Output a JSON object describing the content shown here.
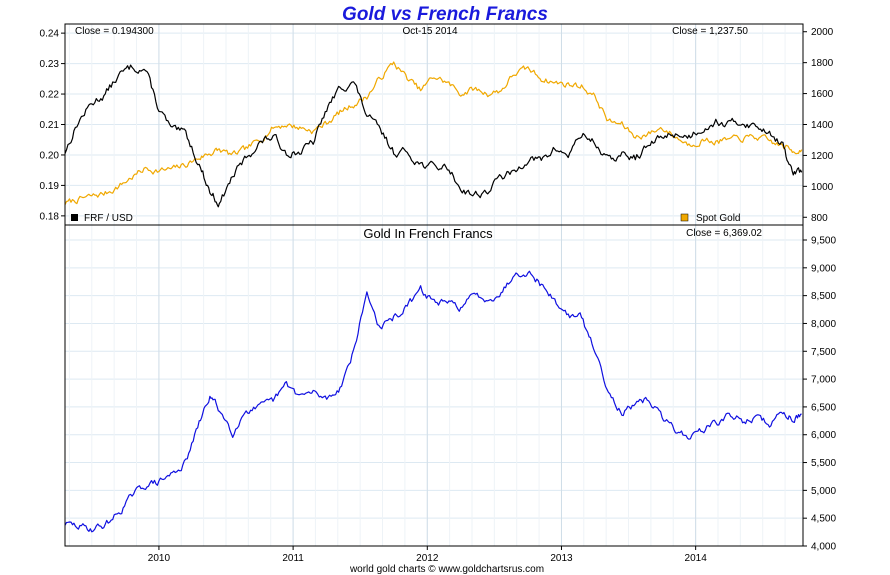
{
  "chart_data": {
    "title": "Gold vs French Francs",
    "title_color": "#1a1adc",
    "footer": "world gold charts © www.goldchartsrus.com",
    "x_ticks": [
      "2010",
      "2011",
      "2012",
      "2013",
      "2014"
    ],
    "top": {
      "type": "line",
      "date_label": "Oct-15  2014",
      "left_close": "Close = 0.194300",
      "right_close": "Close = 1,237.50",
      "left_axis": {
        "ticks": [
          "0.24",
          "0.23",
          "0.22",
          "0.21",
          "0.20",
          "0.19",
          "0.18"
        ],
        "ylim": [
          0.177,
          0.243
        ]
      },
      "right_axis": {
        "ticks": [
          "2000",
          "1800",
          "1600",
          "1400",
          "1200",
          "1000",
          "800"
        ],
        "ylim": [
          750,
          2050
        ]
      },
      "grid": true,
      "legend": [
        "bottom-left",
        "bottom-right"
      ],
      "series": [
        {
          "name": "FRF / USD",
          "axis": "left",
          "color": "#000000",
          "x": [
            2009.3,
            2009.4,
            2009.5,
            2009.6,
            2009.7,
            2009.8,
            2009.9,
            2010.0,
            2010.1,
            2010.2,
            2010.3,
            2010.38,
            2010.45,
            2010.55,
            2010.65,
            2010.75,
            2010.85,
            2010.95,
            2011.05,
            2011.15,
            2011.25,
            2011.35,
            2011.45,
            2011.55,
            2011.65,
            2011.75,
            2011.85,
            2011.95,
            2012.05,
            2012.15,
            2012.25,
            2012.35,
            2012.45,
            2012.55,
            2012.65,
            2012.75,
            2012.85,
            2012.95,
            2013.05,
            2013.15,
            2013.25,
            2013.35,
            2013.45,
            2013.55,
            2013.65,
            2013.75,
            2013.85,
            2013.95,
            2014.05,
            2014.15,
            2014.25,
            2014.35,
            2014.45,
            2014.55,
            2014.65,
            2014.72,
            2014.79
          ],
          "y": [
            0.201,
            0.211,
            0.217,
            0.22,
            0.226,
            0.229,
            0.228,
            0.215,
            0.208,
            0.207,
            0.197,
            0.188,
            0.184,
            0.193,
            0.199,
            0.204,
            0.206,
            0.201,
            0.201,
            0.204,
            0.215,
            0.222,
            0.224,
            0.213,
            0.208,
            0.201,
            0.201,
            0.197,
            0.196,
            0.196,
            0.189,
            0.187,
            0.188,
            0.193,
            0.194,
            0.199,
            0.198,
            0.202,
            0.2,
            0.207,
            0.204,
            0.198,
            0.2,
            0.199,
            0.203,
            0.206,
            0.207,
            0.206,
            0.209,
            0.211,
            0.21,
            0.211,
            0.209,
            0.208,
            0.203,
            0.194,
            0.1943
          ]
        },
        {
          "name": "Spot Gold",
          "axis": "right",
          "color": "#f0a800",
          "x": [
            2009.3,
            2009.4,
            2009.5,
            2009.6,
            2009.7,
            2009.8,
            2009.9,
            2010.0,
            2010.1,
            2010.2,
            2010.3,
            2010.38,
            2010.45,
            2010.55,
            2010.65,
            2010.75,
            2010.85,
            2010.95,
            2011.05,
            2011.15,
            2011.25,
            2011.35,
            2011.45,
            2011.55,
            2011.65,
            2011.75,
            2011.85,
            2011.95,
            2012.05,
            2012.15,
            2012.25,
            2012.35,
            2012.45,
            2012.55,
            2012.65,
            2012.75,
            2012.85,
            2012.95,
            2013.05,
            2013.15,
            2013.25,
            2013.35,
            2013.45,
            2013.55,
            2013.65,
            2013.75,
            2013.85,
            2013.95,
            2014.05,
            2014.15,
            2014.25,
            2014.35,
            2014.45,
            2014.55,
            2014.65,
            2014.72,
            2014.79
          ],
          "y": [
            890,
            915,
            935,
            955,
            1000,
            1060,
            1115,
            1100,
            1110,
            1140,
            1185,
            1215,
            1235,
            1200,
            1240,
            1300,
            1380,
            1400,
            1380,
            1360,
            1410,
            1480,
            1530,
            1580,
            1700,
            1800,
            1700,
            1620,
            1710,
            1670,
            1600,
            1630,
            1600,
            1620,
            1730,
            1760,
            1700,
            1670,
            1660,
            1650,
            1580,
            1420,
            1400,
            1320,
            1340,
            1380,
            1320,
            1270,
            1300,
            1290,
            1300,
            1310,
            1320,
            1290,
            1260,
            1230,
            1237.5
          ]
        }
      ]
    },
    "bottom": {
      "type": "line",
      "subtitle": "Gold In French Francs",
      "right_close": "Close = 6,369.02",
      "right_axis": {
        "ticks": [
          "9,500",
          "9,000",
          "8,500",
          "8,000",
          "7,500",
          "7,000",
          "6,500",
          "6,000",
          "5,500",
          "5,000",
          "4,500",
          "4,000"
        ],
        "ylim": [
          4000,
          9500
        ]
      },
      "grid": true,
      "series": [
        {
          "name": "Gold In French Francs",
          "color": "#1010e0",
          "x": [
            2009.3,
            2009.4,
            2009.5,
            2009.6,
            2009.7,
            2009.8,
            2009.9,
            2010.0,
            2010.1,
            2010.2,
            2010.3,
            2010.38,
            2010.45,
            2010.55,
            2010.65,
            2010.75,
            2010.85,
            2010.95,
            2011.05,
            2011.15,
            2011.25,
            2011.35,
            2011.45,
            2011.55,
            2011.65,
            2011.75,
            2011.85,
            2011.95,
            2012.05,
            2012.15,
            2012.25,
            2012.35,
            2012.45,
            2012.55,
            2012.65,
            2012.75,
            2012.85,
            2012.95,
            2013.05,
            2013.15,
            2013.25,
            2013.35,
            2013.45,
            2013.55,
            2013.65,
            2013.75,
            2013.85,
            2013.95,
            2014.05,
            2014.15,
            2014.25,
            2014.35,
            2014.45,
            2014.55,
            2014.65,
            2014.72,
            2014.79
          ],
          "y": [
            4400,
            4350,
            4310,
            4380,
            4600,
            4900,
            5100,
            5150,
            5300,
            5500,
            6200,
            6700,
            6450,
            6050,
            6450,
            6480,
            6600,
            6900,
            6700,
            6750,
            6650,
            6850,
            7500,
            8550,
            7900,
            8100,
            8300,
            8600,
            8400,
            8350,
            8300,
            8500,
            8450,
            8550,
            8900,
            8950,
            8700,
            8400,
            8150,
            8100,
            7500,
            6800,
            6400,
            6500,
            6650,
            6300,
            6100,
            5950,
            6100,
            6200,
            6350,
            6250,
            6300,
            6200,
            6400,
            6300,
            6369
          ]
        }
      ]
    },
    "legend": {
      "left": "FRF / USD",
      "right": "Spot Gold"
    }
  }
}
